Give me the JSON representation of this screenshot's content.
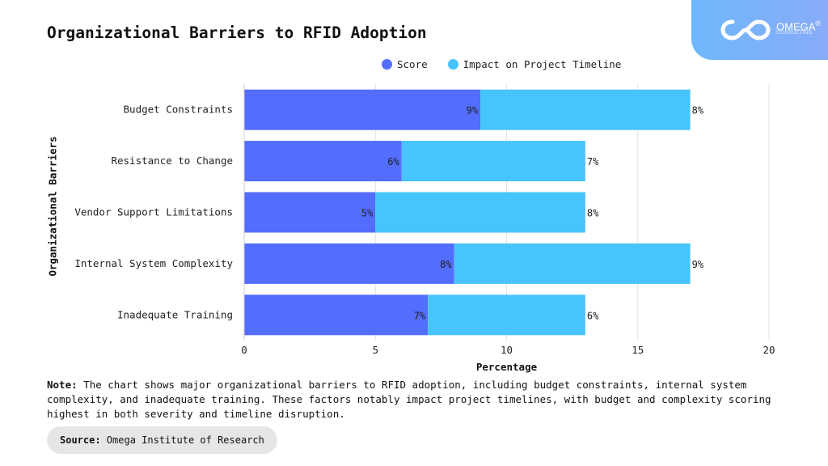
{
  "header": {
    "title": "Organizational Barriers to RFID Adoption",
    "logo": {
      "name": "OMEGA",
      "registered": "®",
      "subtitle": "CONSULTING"
    }
  },
  "colors": {
    "score": "#536dfe",
    "impact": "#48c4fc",
    "grid": "#e2e2e2",
    "logo_gradient_start": "#6fb8fb",
    "logo_gradient_end": "#8aaaf7"
  },
  "chart_data": {
    "type": "bar",
    "orientation": "horizontal",
    "stacked": true,
    "title": "Organizational Barriers to RFID Adoption",
    "xlabel": "Percentage",
    "ylabel": "Organizational Barriers",
    "xlim": [
      0,
      20
    ],
    "xticks": [
      "0",
      "5",
      "10",
      "15",
      "20"
    ],
    "xtick_values": [
      0,
      5,
      10,
      15,
      20
    ],
    "grid": true,
    "legend_position": "top-right",
    "categories": [
      "Budget Constraints",
      "Resistance to Change",
      "Vendor Support Limitations",
      "Internal System Complexity",
      "Inadequate Training"
    ],
    "series": [
      {
        "name": "Score",
        "values": [
          9,
          6,
          5,
          8,
          7
        ],
        "labels": [
          "9%",
          "6%",
          "5%",
          "8%",
          "7%"
        ]
      },
      {
        "name": "Impact on Project Timeline",
        "values": [
          8,
          7,
          8,
          9,
          6
        ],
        "labels": [
          "8%",
          "7%",
          "8%",
          "9%",
          "6%"
        ]
      }
    ]
  },
  "note": {
    "label": "Note:",
    "text": " The chart shows major organizational barriers to RFID adoption, including budget constraints, internal system complexity, and inadequate training. These factors notably impact project timelines, with budget and complexity scoring highest in both severity and timeline disruption."
  },
  "source": {
    "label": "Source:",
    "text": " Omega Institute of Research"
  }
}
